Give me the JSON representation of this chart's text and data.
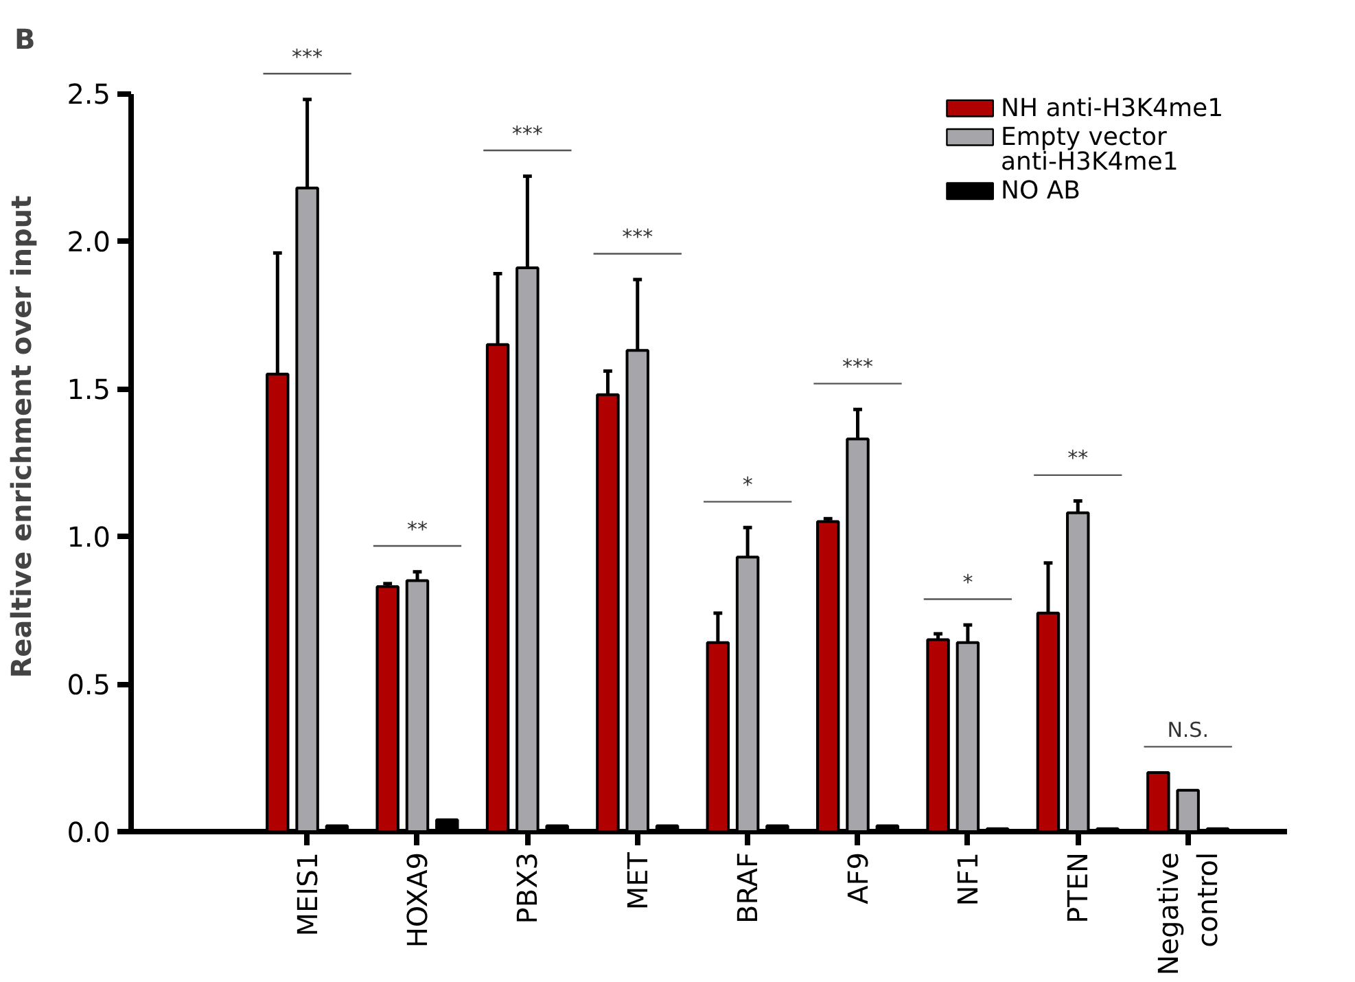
{
  "chart_data": {
    "type": "bar",
    "ylabel": "Realtive enrichment over input",
    "categories": [
      "MEIS1",
      "HOXA9",
      "PBX3",
      "MET",
      "BRAF",
      "AF9",
      "NF1",
      "PTEN",
      "Negative control"
    ],
    "series": [
      {
        "name": "NH anti-H3K4me1",
        "color": "#b00000",
        "values": [
          1.55,
          0.83,
          1.65,
          1.48,
          0.64,
          1.05,
          0.65,
          0.74,
          0.2
        ],
        "errors": [
          [
            1.55,
            1.96
          ],
          [
            0.83,
            0.84
          ],
          [
            1.65,
            1.89
          ],
          [
            1.48,
            1.56
          ],
          [
            0.64,
            0.74
          ],
          [
            1.05,
            1.06
          ],
          [
            0.65,
            0.67
          ],
          [
            0.74,
            0.91
          ],
          null
        ]
      },
      {
        "name": "Empty vector anti-H3K4me1",
        "color": "#a6a6aa",
        "values": [
          2.18,
          0.85,
          1.91,
          1.63,
          0.93,
          1.33,
          0.64,
          1.08,
          0.14
        ],
        "errors": [
          [
            2.18,
            2.48
          ],
          [
            0.85,
            0.88
          ],
          [
            1.91,
            2.22
          ],
          [
            1.63,
            1.87
          ],
          [
            0.93,
            1.03
          ],
          [
            1.33,
            1.43
          ],
          [
            0.64,
            0.7
          ],
          [
            1.08,
            1.12
          ],
          null
        ]
      },
      {
        "name": "NO AB",
        "color": "#000000",
        "values": [
          0.02,
          0.04,
          0.02,
          0.02,
          0.02,
          0.02,
          0.01,
          0.01,
          0.01
        ]
      }
    ],
    "ylim": [
      0,
      2.5
    ],
    "yticks": [
      {
        "value": 0,
        "label": "0.0"
      },
      {
        "value": 0.5,
        "label": "0.5"
      },
      {
        "value": 1,
        "label": "1.0"
      },
      {
        "value": 1.5,
        "label": "1.5"
      },
      {
        "value": 2,
        "label": "2.0"
      },
      {
        "value": 2.5,
        "label": "2.5"
      }
    ],
    "grid": false,
    "legend": "top right",
    "title": "B",
    "annotations": [
      "***",
      "**",
      "***",
      "***",
      "*",
      "***",
      "*",
      "**",
      "N.S."
    ]
  }
}
